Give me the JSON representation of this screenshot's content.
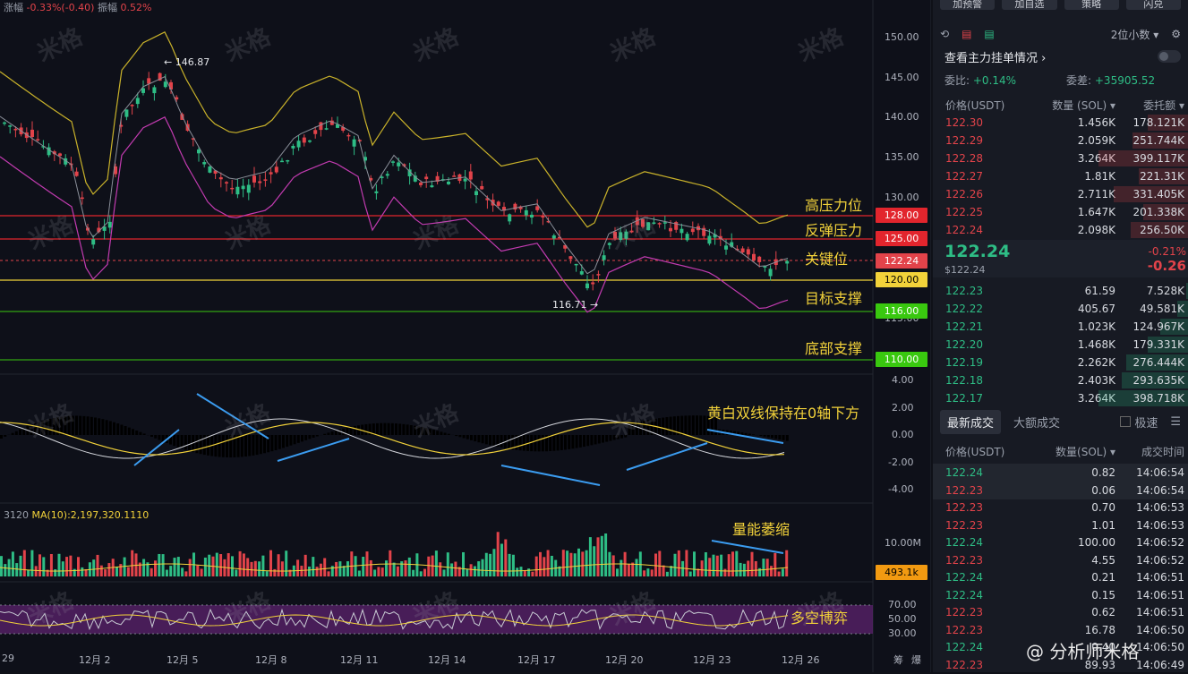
{
  "header": {
    "change_label": "涨幅",
    "change_value": "-0.33%(-0.40)",
    "amp_label": "振幅",
    "amp_value": "0.52%"
  },
  "watermark": "米格",
  "price_axis": [
    "150.00",
    "145.00",
    "140.00",
    "135.00",
    "130.00",
    "115.00",
    "4.00",
    "2.00",
    "0.00",
    "-2.00",
    "-4.00",
    "10.00M",
    "70.00",
    "50.00",
    "30.00"
  ],
  "price_badges": [
    {
      "text": "128.00",
      "color": "#e2252d"
    },
    {
      "text": "125.00",
      "color": "#e2252d"
    },
    {
      "text": "122.24",
      "color": "#e2434a"
    },
    {
      "text": "120.00",
      "color": "#f2d23a",
      "text_color": "#000"
    },
    {
      "text": "116.00",
      "color": "#39c80f"
    },
    {
      "text": "110.00",
      "color": "#39c80f"
    },
    {
      "text": "493.1k",
      "color": "#f29a11"
    }
  ],
  "annotations": {
    "high_pressure": "高压力位",
    "rebound_pressure": "反弹压力",
    "key_level": "关键位",
    "target_support": "目标支撑",
    "bottom_support": "底部支撑",
    "macd_note": "黄白双线保持在0轴下方",
    "volume_note": "量能萎缩",
    "rsi_note": "多空博弈"
  },
  "markers": {
    "high": "146.87",
    "low": "116.71"
  },
  "volume_label": {
    "prefix": "3120",
    "ma": "MA(10):2,197,320.1110"
  },
  "dates": [
    "29",
    "12月 2",
    "12月 5",
    "12月 8",
    "12月 11",
    "12月 14",
    "12月 17",
    "12月 20",
    "12月 23",
    "12月 26"
  ],
  "bottom_right": [
    "筹",
    "爆"
  ],
  "sidebar": {
    "top_buttons": [
      "加预警",
      "加自选",
      "策略",
      "闪兑"
    ],
    "decimals": "2位小数",
    "depth_link": "查看主力挂单情况",
    "ratio_label": "委比:",
    "ratio_value": "+0.14%",
    "diff_label": "委差:",
    "diff_value": "+35905.52",
    "ob_headers": [
      "价格(USDT)",
      "数量 (SOL)",
      "委托额"
    ],
    "asks": [
      {
        "p": "122.30",
        "q": "1.456K",
        "a": "178.121K",
        "d": 0.45
      },
      {
        "p": "122.29",
        "q": "2.059K",
        "a": "251.744K",
        "d": 0.62
      },
      {
        "p": "122.28",
        "q": "3.264K",
        "a": "399.117K",
        "d": 1.0
      },
      {
        "p": "122.27",
        "q": "1.81K",
        "a": "221.31K",
        "d": 0.55
      },
      {
        "p": "122.26",
        "q": "2.711K",
        "a": "331.405K",
        "d": 0.83
      },
      {
        "p": "122.25",
        "q": "1.647K",
        "a": "201.338K",
        "d": 0.5
      },
      {
        "p": "122.24",
        "q": "2.098K",
        "a": "256.50K",
        "d": 0.64
      }
    ],
    "last_price": "122.24",
    "last_usd": "$122.24",
    "last_pct": "-0.21%",
    "last_abs": "-0.26",
    "bids": [
      {
        "p": "122.23",
        "q": "61.59",
        "a": "7.528K",
        "d": 0.02
      },
      {
        "p": "122.22",
        "q": "405.67",
        "a": "49.581K",
        "d": 0.12
      },
      {
        "p": "122.21",
        "q": "1.023K",
        "a": "124.967K",
        "d": 0.31
      },
      {
        "p": "122.20",
        "q": "1.468K",
        "a": "179.331K",
        "d": 0.45
      },
      {
        "p": "122.19",
        "q": "2.262K",
        "a": "276.444K",
        "d": 0.69
      },
      {
        "p": "122.18",
        "q": "2.403K",
        "a": "293.635K",
        "d": 0.74
      },
      {
        "p": "122.17",
        "q": "3.264K",
        "a": "398.718K",
        "d": 1.0
      }
    ],
    "tabs": [
      "最新成交",
      "大额成交",
      "极速"
    ],
    "tr_headers": [
      "价格(USDT)",
      "数量(SOL)",
      "成交时间"
    ],
    "trades": [
      {
        "p": "122.24",
        "q": "0.82",
        "t": "14:06:54",
        "c": "green"
      },
      {
        "p": "122.23",
        "q": "0.06",
        "t": "14:06:54",
        "c": "red"
      },
      {
        "p": "122.23",
        "q": "0.70",
        "t": "14:06:53",
        "c": "red"
      },
      {
        "p": "122.23",
        "q": "1.01",
        "t": "14:06:53",
        "c": "red"
      },
      {
        "p": "122.24",
        "q": "100.00",
        "t": "14:06:52",
        "c": "green"
      },
      {
        "p": "122.23",
        "q": "4.55",
        "t": "14:06:52",
        "c": "red"
      },
      {
        "p": "122.24",
        "q": "0.21",
        "t": "14:06:51",
        "c": "green"
      },
      {
        "p": "122.24",
        "q": "0.15",
        "t": "14:06:51",
        "c": "green"
      },
      {
        "p": "122.23",
        "q": "0.62",
        "t": "14:06:51",
        "c": "red"
      },
      {
        "p": "122.23",
        "q": "16.78",
        "t": "14:06:50",
        "c": "red"
      },
      {
        "p": "122.24",
        "q": "0.40",
        "t": "14:06:50",
        "c": "green"
      },
      {
        "p": "122.23",
        "q": "89.93",
        "t": "14:06:49",
        "c": "red"
      }
    ],
    "footer": "@ 分析师米格"
  }
}
